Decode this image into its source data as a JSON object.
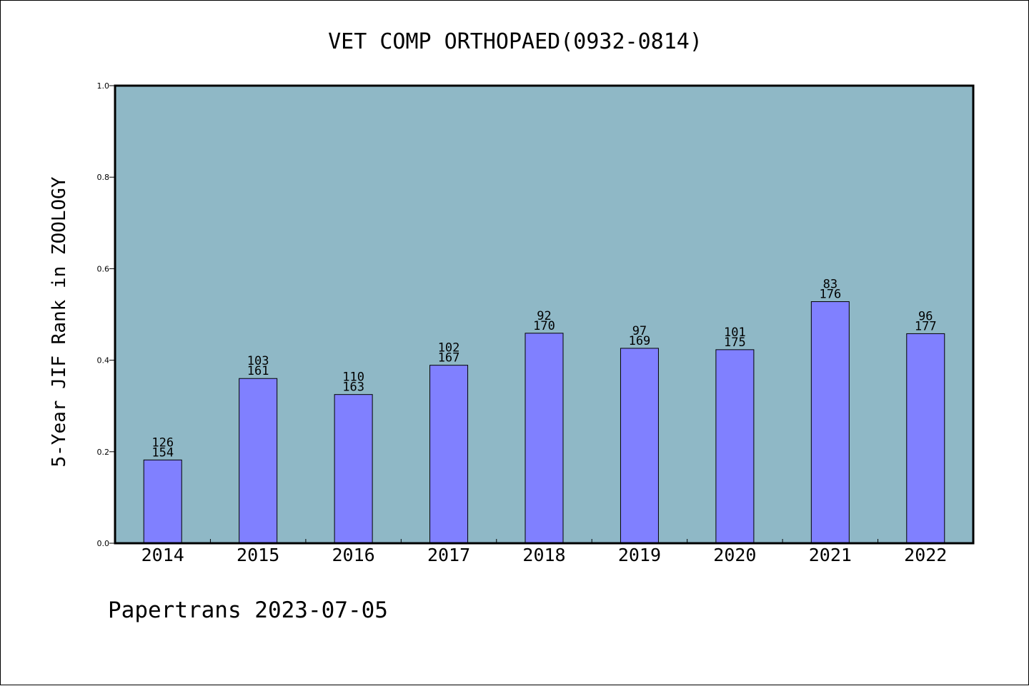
{
  "chart_data": {
    "type": "bar",
    "title": "VET COMP ORTHOPAED(0932-0814)",
    "xlabel": "",
    "ylabel": "5-Year JIF Rank in ZOOLOGY",
    "ylim": [
      0,
      1.0
    ],
    "yticks": [
      "0.0",
      "0.2",
      "0.4",
      "0.6",
      "0.8",
      "1.0"
    ],
    "categories": [
      "2014",
      "2015",
      "2016",
      "2017",
      "2018",
      "2019",
      "2020",
      "2021",
      "2022"
    ],
    "values": [
      0.182,
      0.36,
      0.325,
      0.389,
      0.459,
      0.426,
      0.423,
      0.528,
      0.458
    ],
    "rank": [
      "126",
      "103",
      "110",
      "102",
      "92",
      "97",
      "101",
      "83",
      "96"
    ],
    "total": [
      "154",
      "161",
      "163",
      "167",
      "170",
      "169",
      "175",
      "176",
      "177"
    ],
    "bar_color": "#8080ff",
    "plot_background": "#8fb8c6",
    "grid": false
  },
  "footer": "Papertrans 2023-07-05"
}
